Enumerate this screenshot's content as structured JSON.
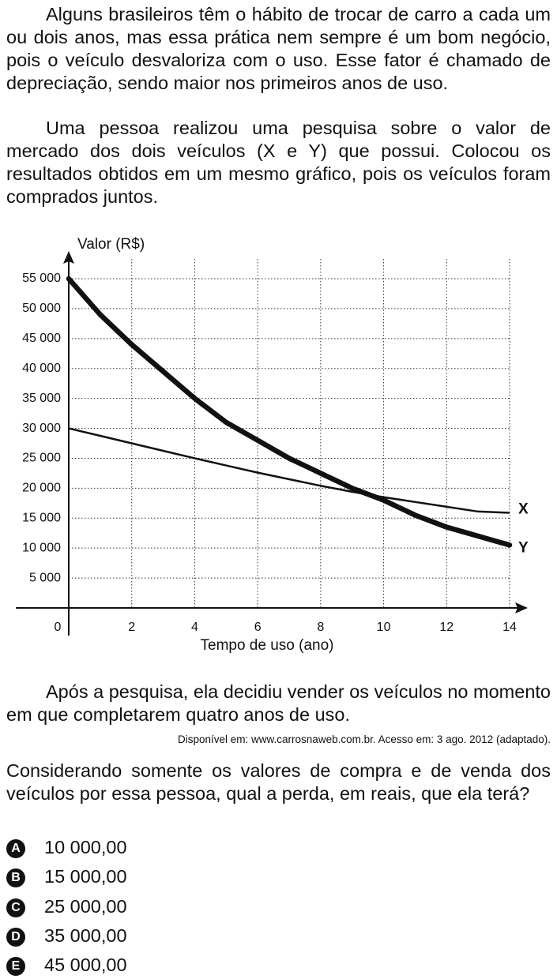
{
  "intro": [
    "Alguns brasileiros têm o hábito de trocar de carro a cada um ou dois anos, mas essa prática nem sempre é um bom negócio, pois o veículo desvaloriza com o uso. Esse fator é chamado de depreciação, sendo maior nos primeiros anos de uso.",
    "Uma pessoa realizou uma pesquisa sobre o valor de mercado dos dois veículos (X e Y) que possui. Colocou os resultados obtidos em um mesmo gráfico, pois os veículos foram comprados juntos."
  ],
  "chart_data": {
    "type": "line",
    "x_label": "Tempo de uso (ano)",
    "y_label": "Valor (R$)",
    "x": [
      0,
      1,
      2,
      3,
      4,
      5,
      6,
      7,
      8,
      9,
      10,
      11,
      12,
      13,
      14
    ],
    "series": [
      {
        "name": "X",
        "color": "#111111",
        "values": [
          30000,
          28750,
          27500,
          26250,
          25000,
          23800,
          22600,
          21500,
          20400,
          19400,
          18500,
          17700,
          16900,
          16100,
          15900
        ]
      },
      {
        "name": "Y",
        "color": "#111111",
        "values": [
          55000,
          49000,
          44000,
          39500,
          35000,
          31000,
          28000,
          25000,
          22500,
          20000,
          18000,
          15500,
          13500,
          12000,
          10500
        ]
      }
    ],
    "xlim": [
      0,
      14
    ],
    "ylim": [
      0,
      55000
    ],
    "xticks": [
      0,
      2,
      4,
      6,
      8,
      10,
      12,
      14
    ],
    "yticks": [
      {
        "value": 5000,
        "label": "5 000"
      },
      {
        "value": 10000,
        "label": "10 000"
      },
      {
        "value": 15000,
        "label": "15 000"
      },
      {
        "value": 20000,
        "label": "20 000"
      },
      {
        "value": 25000,
        "label": "25 000"
      },
      {
        "value": 30000,
        "label": "30 000"
      },
      {
        "value": 35000,
        "label": "35 000"
      },
      {
        "value": 40000,
        "label": "40 000"
      },
      {
        "value": 45000,
        "label": "45 000"
      },
      {
        "value": 50000,
        "label": "50 000"
      },
      {
        "value": 55000,
        "label": "55 000"
      }
    ],
    "grid": true
  },
  "after_chart": "Após a pesquisa, ela decidiu vender os veículos no momento em que completarem quatro anos de uso.",
  "source": "Disponível em: www.carrosnaweb.com.br. Acesso em: 3 ago. 2012 (adaptado).",
  "question": "Considerando somente os valores de compra e de venda dos veículos por essa pessoa, qual a perda, em reais, que ela terá?",
  "options": [
    {
      "letter": "A",
      "text": "10 000,00"
    },
    {
      "letter": "B",
      "text": "15 000,00"
    },
    {
      "letter": "C",
      "text": "25 000,00"
    },
    {
      "letter": "D",
      "text": "35 000,00"
    },
    {
      "letter": "E",
      "text": "45 000,00"
    }
  ]
}
